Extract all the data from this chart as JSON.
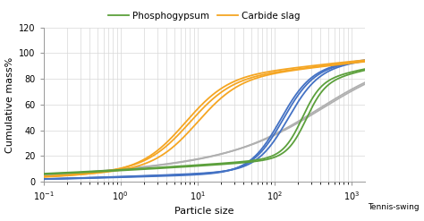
{
  "xlabel": "Particle size",
  "ylabel": "Cumulative mass%",
  "ylim": [
    0,
    120
  ],
  "yticks": [
    0,
    20,
    40,
    60,
    80,
    100,
    120
  ],
  "legend_phosphogypsum": "Phosphogypsum",
  "legend_carbide_slag": "Carbide slag",
  "tennis_swing_label": "Tennis-swing",
  "color_green": "#5ca03c",
  "color_orange": "#f5a623",
  "color_blue": "#4472c4",
  "color_gray": "#b0b0b0",
  "lw": 1.3
}
